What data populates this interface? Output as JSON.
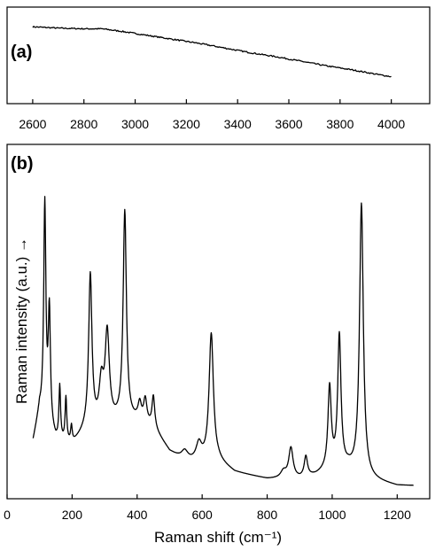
{
  "chart_data": [
    {
      "type": "line",
      "panel_label": "(a)",
      "xlim": [
        2500,
        4150
      ],
      "ylim": [
        0,
        1
      ],
      "xticks": [
        2600,
        2800,
        3000,
        3200,
        3400,
        3600,
        3800,
        4000
      ],
      "xtick_labels": [
        "2600",
        "2800",
        "3000",
        "3200",
        "3400",
        "3600",
        "3800",
        "4000"
      ],
      "yticks": [],
      "xlabel": "",
      "ylabel": "",
      "grid": false,
      "series": [
        {
          "x": [
            2600,
            2700,
            2800,
            2870,
            2950,
            3050,
            3150,
            3250,
            3350,
            3450,
            3550,
            3650,
            3750,
            3850,
            3950,
            4000
          ],
          "y": [
            0.93,
            0.91,
            0.9,
            0.9,
            0.86,
            0.8,
            0.74,
            0.68,
            0.61,
            0.54,
            0.48,
            0.41,
            0.34,
            0.28,
            0.21,
            0.18
          ]
        }
      ]
    },
    {
      "type": "line",
      "panel_label": "(b)",
      "xlim": [
        0,
        1300
      ],
      "ylim": [
        0,
        1
      ],
      "xticks": [
        0,
        200,
        400,
        600,
        800,
        1000,
        1200
      ],
      "xtick_labels": [
        "0",
        "200",
        "400",
        "600",
        "800",
        "1000",
        "1200"
      ],
      "yticks": [],
      "xlabel": "Raman shift (cm⁻¹)",
      "ylabel": "Raman intensity (a.u.) →",
      "grid": false,
      "baseline": [
        [
          80,
          0.16
        ],
        [
          100,
          0.25
        ],
        [
          150,
          0.16
        ],
        [
          200,
          0.15
        ],
        [
          250,
          0.2
        ],
        [
          300,
          0.2
        ],
        [
          350,
          0.22
        ],
        [
          400,
          0.22
        ],
        [
          450,
          0.2
        ],
        [
          500,
          0.13
        ],
        [
          550,
          0.1
        ],
        [
          600,
          0.1
        ],
        [
          650,
          0.1
        ],
        [
          700,
          0.07
        ],
        [
          750,
          0.06
        ],
        [
          800,
          0.05
        ],
        [
          850,
          0.05
        ],
        [
          900,
          0.05
        ],
        [
          950,
          0.06
        ],
        [
          1000,
          0.08
        ],
        [
          1050,
          0.08
        ],
        [
          1100,
          0.05
        ],
        [
          1150,
          0.04
        ],
        [
          1200,
          0.03
        ],
        [
          1250,
          0.03
        ]
      ],
      "peaks": [
        {
          "center": 116,
          "height": 0.64,
          "width": 4
        },
        {
          "center": 130,
          "height": 0.34,
          "width": 4
        },
        {
          "center": 162,
          "height": 0.16,
          "width": 3
        },
        {
          "center": 181,
          "height": 0.13,
          "width": 3
        },
        {
          "center": 198,
          "height": 0.05,
          "width": 3
        },
        {
          "center": 256,
          "height": 0.45,
          "width": 6
        },
        {
          "center": 290,
          "height": 0.12,
          "width": 8
        },
        {
          "center": 308,
          "height": 0.27,
          "width": 8
        },
        {
          "center": 362,
          "height": 0.62,
          "width": 6
        },
        {
          "center": 408,
          "height": 0.05,
          "width": 6
        },
        {
          "center": 425,
          "height": 0.07,
          "width": 6
        },
        {
          "center": 450,
          "height": 0.09,
          "width": 5
        },
        {
          "center": 547,
          "height": 0.03,
          "width": 12
        },
        {
          "center": 590,
          "height": 0.05,
          "width": 10
        },
        {
          "center": 628,
          "height": 0.38,
          "width": 8
        },
        {
          "center": 850,
          "height": 0.02,
          "width": 10
        },
        {
          "center": 873,
          "height": 0.09,
          "width": 8
        },
        {
          "center": 919,
          "height": 0.06,
          "width": 6
        },
        {
          "center": 992,
          "height": 0.24,
          "width": 6
        },
        {
          "center": 1022,
          "height": 0.39,
          "width": 6
        },
        {
          "center": 1090,
          "height": 0.81,
          "width": 7
        }
      ]
    }
  ]
}
